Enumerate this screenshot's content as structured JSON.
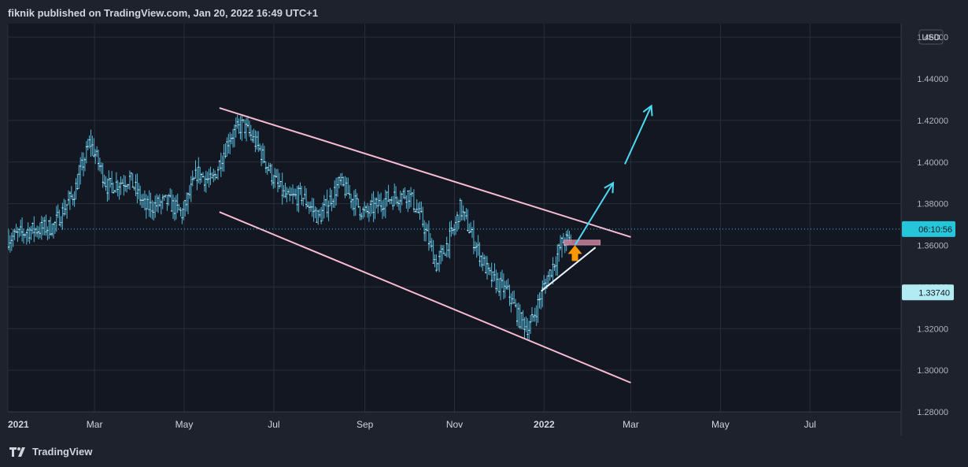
{
  "header": {
    "text": "fiknik published on TradingView.com, Jan 20, 2022 16:49 UTC+1"
  },
  "footer": {
    "brand": "TradingView",
    "logo_icon": "tradingview-logo-icon"
  },
  "colors": {
    "background": "#1e222d",
    "plot_background": "#131722",
    "grid": "#2a2e39",
    "candle": "#53b9d9",
    "channel": "#f8bbd0",
    "arrow": "#4dd9f2",
    "breakout_arrow": "#ff9800",
    "price_line": "#26c6da"
  },
  "chart_data": {
    "type": "candlestick",
    "title": "",
    "currency": "USD",
    "y_ticks": [
      "1.46000",
      "1.44000",
      "1.42000",
      "1.40000",
      "1.38000",
      "1.36000",
      "1.34000",
      "1.32000",
      "1.30000",
      "1.28000"
    ],
    "x_ticks": [
      "2021",
      "Mar",
      "May",
      "Jul",
      "Sep",
      "Nov",
      "2022",
      "Mar",
      "May",
      "Jul"
    ],
    "ylim": [
      1.28,
      1.4665
    ],
    "xlim": [
      "2021-01-01",
      "2022-09-01"
    ],
    "grid": true,
    "current_price": 1.3625,
    "countdown": "06:10:56",
    "marked_price": "1.33740",
    "price_path": [
      {
        "date": "2021-01-01",
        "close": 1.363
      },
      {
        "date": "2021-01-15",
        "close": 1.367
      },
      {
        "date": "2021-02-01",
        "close": 1.369
      },
      {
        "date": "2021-02-15",
        "close": 1.385
      },
      {
        "date": "2021-02-26",
        "close": 1.41
      },
      {
        "date": "2021-03-10",
        "close": 1.388
      },
      {
        "date": "2021-03-25",
        "close": 1.392
      },
      {
        "date": "2021-04-05",
        "close": 1.378
      },
      {
        "date": "2021-04-20",
        "close": 1.381
      },
      {
        "date": "2021-04-30",
        "close": 1.375
      },
      {
        "date": "2021-05-10",
        "close": 1.395
      },
      {
        "date": "2021-05-20",
        "close": 1.39
      },
      {
        "date": "2021-06-01",
        "close": 1.412
      },
      {
        "date": "2021-06-10",
        "close": 1.418
      },
      {
        "date": "2021-06-20",
        "close": 1.408
      },
      {
        "date": "2021-07-01",
        "close": 1.392
      },
      {
        "date": "2021-07-10",
        "close": 1.382
      },
      {
        "date": "2021-07-20",
        "close": 1.384
      },
      {
        "date": "2021-08-01",
        "close": 1.373
      },
      {
        "date": "2021-08-15",
        "close": 1.39
      },
      {
        "date": "2021-09-01",
        "close": 1.375
      },
      {
        "date": "2021-09-15",
        "close": 1.382
      },
      {
        "date": "2021-10-01",
        "close": 1.385
      },
      {
        "date": "2021-10-10",
        "close": 1.372
      },
      {
        "date": "2021-10-20",
        "close": 1.35
      },
      {
        "date": "2021-11-01",
        "close": 1.368
      },
      {
        "date": "2021-11-05",
        "close": 1.378
      },
      {
        "date": "2021-11-15",
        "close": 1.361
      },
      {
        "date": "2021-11-25",
        "close": 1.345
      },
      {
        "date": "2021-12-08",
        "close": 1.337
      },
      {
        "date": "2021-12-15",
        "close": 1.325
      },
      {
        "date": "2021-12-22",
        "close": 1.32
      },
      {
        "date": "2022-01-01",
        "close": 1.34
      },
      {
        "date": "2022-01-08",
        "close": 1.352
      },
      {
        "date": "2022-01-14",
        "close": 1.362
      },
      {
        "date": "2022-01-20",
        "close": 1.3625
      }
    ],
    "channel_upper": [
      {
        "date": "2021-05-25",
        "price": 1.426
      },
      {
        "date": "2022-03-01",
        "price": 1.364
      }
    ],
    "channel_lower": [
      {
        "date": "2021-05-25",
        "price": 1.376
      },
      {
        "date": "2022-03-01",
        "price": 1.294
      }
    ],
    "trend_line": [
      {
        "date": "2021-12-30",
        "price": 1.338
      },
      {
        "date": "2022-02-05",
        "price": 1.359
      }
    ],
    "arrows": [
      {
        "from": {
          "date": "2022-01-22",
          "price": 1.36
        },
        "to": {
          "date": "2022-02-17",
          "price": 1.39
        }
      },
      {
        "from": {
          "date": "2022-02-25",
          "price": 1.399
        },
        "to": {
          "date": "2022-03-15",
          "price": 1.427
        }
      }
    ],
    "breakout_marker": {
      "date": "2022-01-22",
      "price": 1.354
    }
  }
}
